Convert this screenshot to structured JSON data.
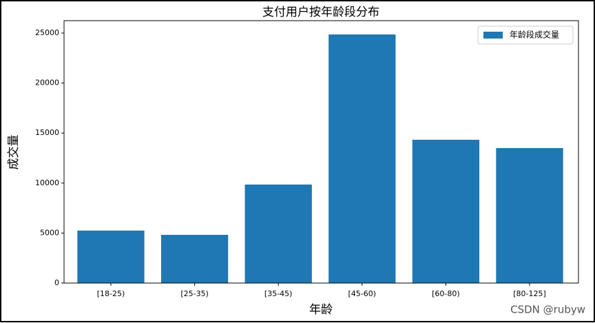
{
  "chart_data": {
    "type": "bar",
    "title": "支付用户按年龄段分布",
    "x_label": "年龄",
    "y_label": "成交量",
    "categories": [
      "[18-25)",
      "[25-35)",
      "[35-45)",
      "[45-60)",
      "[60-80)",
      "[80-125]"
    ],
    "series": [
      {
        "name": "年龄段成交量",
        "color": "#1f77b4",
        "values": [
          5250,
          4820,
          9850,
          24860,
          14330,
          13500
        ]
      }
    ],
    "ylim": [
      0,
      26240
    ],
    "yticks": [
      0,
      5000,
      10000,
      15000,
      20000,
      25000
    ],
    "legend": "upper right",
    "grid": false,
    "watermark": "CSDN @rubyw"
  }
}
